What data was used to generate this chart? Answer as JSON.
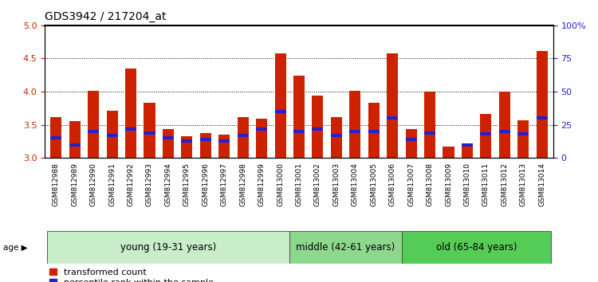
{
  "title": "GDS3942 / 217204_at",
  "samples": [
    "GSM812988",
    "GSM812989",
    "GSM812990",
    "GSM812991",
    "GSM812992",
    "GSM812993",
    "GSM812994",
    "GSM812995",
    "GSM812996",
    "GSM812997",
    "GSM812998",
    "GSM812999",
    "GSM813000",
    "GSM813001",
    "GSM813002",
    "GSM813003",
    "GSM813004",
    "GSM813005",
    "GSM813006",
    "GSM813007",
    "GSM813008",
    "GSM813009",
    "GSM813010",
    "GSM813011",
    "GSM813012",
    "GSM813013",
    "GSM813014"
  ],
  "transformed_count": [
    3.61,
    3.56,
    4.01,
    3.71,
    4.35,
    3.83,
    3.43,
    3.33,
    3.37,
    3.35,
    3.61,
    3.59,
    4.58,
    4.24,
    3.94,
    3.61,
    4.01,
    3.83,
    4.58,
    3.44,
    4.0,
    3.17,
    3.22,
    3.66,
    4.0,
    3.57,
    4.61
  ],
  "percentile_rank": [
    15,
    10,
    20,
    17,
    22,
    19,
    15,
    13,
    14,
    13,
    17,
    22,
    35,
    20,
    22,
    17,
    20,
    20,
    30,
    14,
    19,
    9,
    10,
    18,
    20,
    18,
    30
  ],
  "group_defs": [
    {
      "label": "young (19-31 years)",
      "start": 0,
      "end": 12,
      "color": "#c8edc8"
    },
    {
      "label": "middle (42-61 years)",
      "start": 13,
      "end": 18,
      "color": "#8ed88e"
    },
    {
      "label": "old (65-84 years)",
      "start": 19,
      "end": 26,
      "color": "#55cc55"
    }
  ],
  "ylim_left": [
    3.0,
    5.0
  ],
  "ylim_right": [
    0,
    100
  ],
  "left_yticks": [
    3.0,
    3.5,
    4.0,
    4.5,
    5.0
  ],
  "right_yticks": [
    0,
    25,
    50,
    75,
    100
  ],
  "right_yticklabels": [
    "0",
    "25",
    "50",
    "75",
    "100%"
  ],
  "bar_color_red": "#cc2200",
  "bar_color_blue": "#2222cc",
  "title_fontsize": 10,
  "tick_fontsize": 6.5,
  "legend_fontsize": 8,
  "group_fontsize": 8.5
}
